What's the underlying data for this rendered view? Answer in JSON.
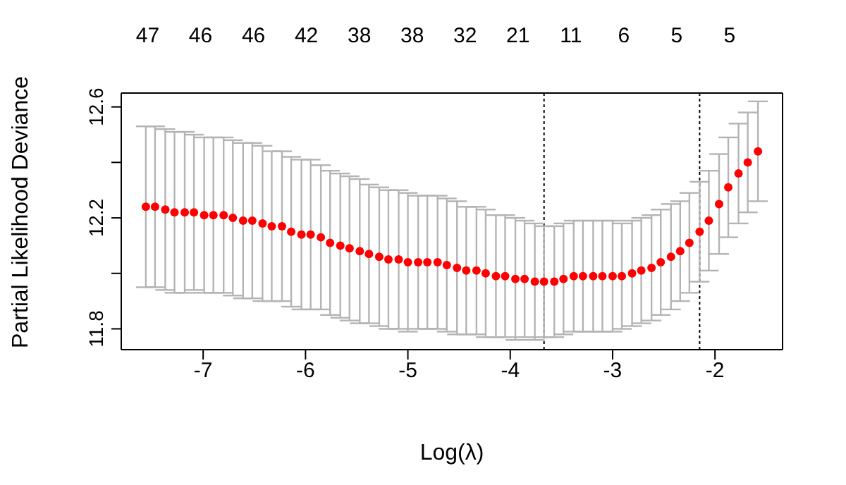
{
  "chart_data": {
    "type": "scatter",
    "xlabel": "Log(λ)",
    "ylabel": "Partial Likelihood Deviance",
    "x": [
      -7.56,
      -7.47,
      -7.37,
      -7.28,
      -7.18,
      -7.09,
      -6.99,
      -6.9,
      -6.8,
      -6.71,
      -6.61,
      -6.52,
      -6.42,
      -6.33,
      -6.23,
      -6.14,
      -6.04,
      -5.95,
      -5.85,
      -5.76,
      -5.66,
      -5.57,
      -5.47,
      -5.38,
      -5.28,
      -5.19,
      -5.09,
      -5.0,
      -4.9,
      -4.81,
      -4.71,
      -4.62,
      -4.52,
      -4.43,
      -4.33,
      -4.24,
      -4.14,
      -4.05,
      -3.95,
      -3.86,
      -3.76,
      -3.67,
      -3.57,
      -3.48,
      -3.38,
      -3.29,
      -3.19,
      -3.1,
      -3.0,
      -2.91,
      -2.81,
      -2.72,
      -2.62,
      -2.53,
      -2.43,
      -2.34,
      -2.25,
      -2.15,
      -2.06,
      -1.96,
      -1.87,
      -1.77,
      -1.68,
      -1.58
    ],
    "series": [
      {
        "color": "#ff0000",
        "values": [
          12.24,
          12.24,
          12.23,
          12.22,
          12.22,
          12.22,
          12.21,
          12.21,
          12.21,
          12.2,
          12.19,
          12.19,
          12.18,
          12.17,
          12.17,
          12.15,
          12.14,
          12.14,
          12.13,
          12.11,
          12.1,
          12.09,
          12.08,
          12.07,
          12.06,
          12.05,
          12.05,
          12.04,
          12.04,
          12.04,
          12.04,
          12.03,
          12.02,
          12.01,
          12.01,
          12.0,
          11.99,
          11.99,
          11.98,
          11.98,
          11.97,
          11.97,
          11.97,
          11.98,
          11.99,
          11.99,
          11.99,
          11.99,
          11.99,
          11.99,
          12.0,
          12.01,
          12.02,
          12.04,
          12.06,
          12.08,
          12.11,
          12.15,
          12.19,
          12.25,
          12.31,
          12.36,
          12.4,
          12.44
        ],
        "errors": [
          0.29,
          0.29,
          0.29,
          0.29,
          0.29,
          0.28,
          0.28,
          0.28,
          0.28,
          0.28,
          0.28,
          0.28,
          0.28,
          0.27,
          0.27,
          0.27,
          0.27,
          0.27,
          0.26,
          0.26,
          0.26,
          0.26,
          0.26,
          0.25,
          0.25,
          0.25,
          0.25,
          0.25,
          0.24,
          0.24,
          0.24,
          0.24,
          0.24,
          0.23,
          0.23,
          0.23,
          0.22,
          0.22,
          0.22,
          0.21,
          0.21,
          0.2,
          0.2,
          0.2,
          0.2,
          0.2,
          0.2,
          0.2,
          0.2,
          0.19,
          0.19,
          0.19,
          0.19,
          0.19,
          0.19,
          0.18,
          0.18,
          0.18,
          0.18,
          0.18,
          0.18,
          0.18,
          0.18,
          0.18
        ]
      }
    ],
    "xlim": [
      -7.8,
      -1.34
    ],
    "xticks": [
      -7,
      -6,
      -5,
      -4,
      -3,
      -2
    ],
    "annotations": [
      "47",
      "46",
      "46",
      "42",
      "38",
      "38",
      "32",
      "21",
      "11",
      "6",
      "5",
      "5"
    ],
    "ylim": [
      11.725,
      12.65
    ],
    "yticks": [
      11.8,
      {
        "value": 12.0,
        "label": null
      },
      12.2,
      {
        "value": 12.4,
        "label": null
      },
      12.6
    ],
    "ref_lines": [
      {
        "axis": "x",
        "value": -3.67,
        "label": null,
        "line_style": "dotted",
        "color": "#000000"
      },
      {
        "axis": "x",
        "value": -2.15,
        "label": null,
        "line_style": "dotted",
        "color": "#000000"
      }
    ],
    "grid": false,
    "marker": "circle"
  }
}
